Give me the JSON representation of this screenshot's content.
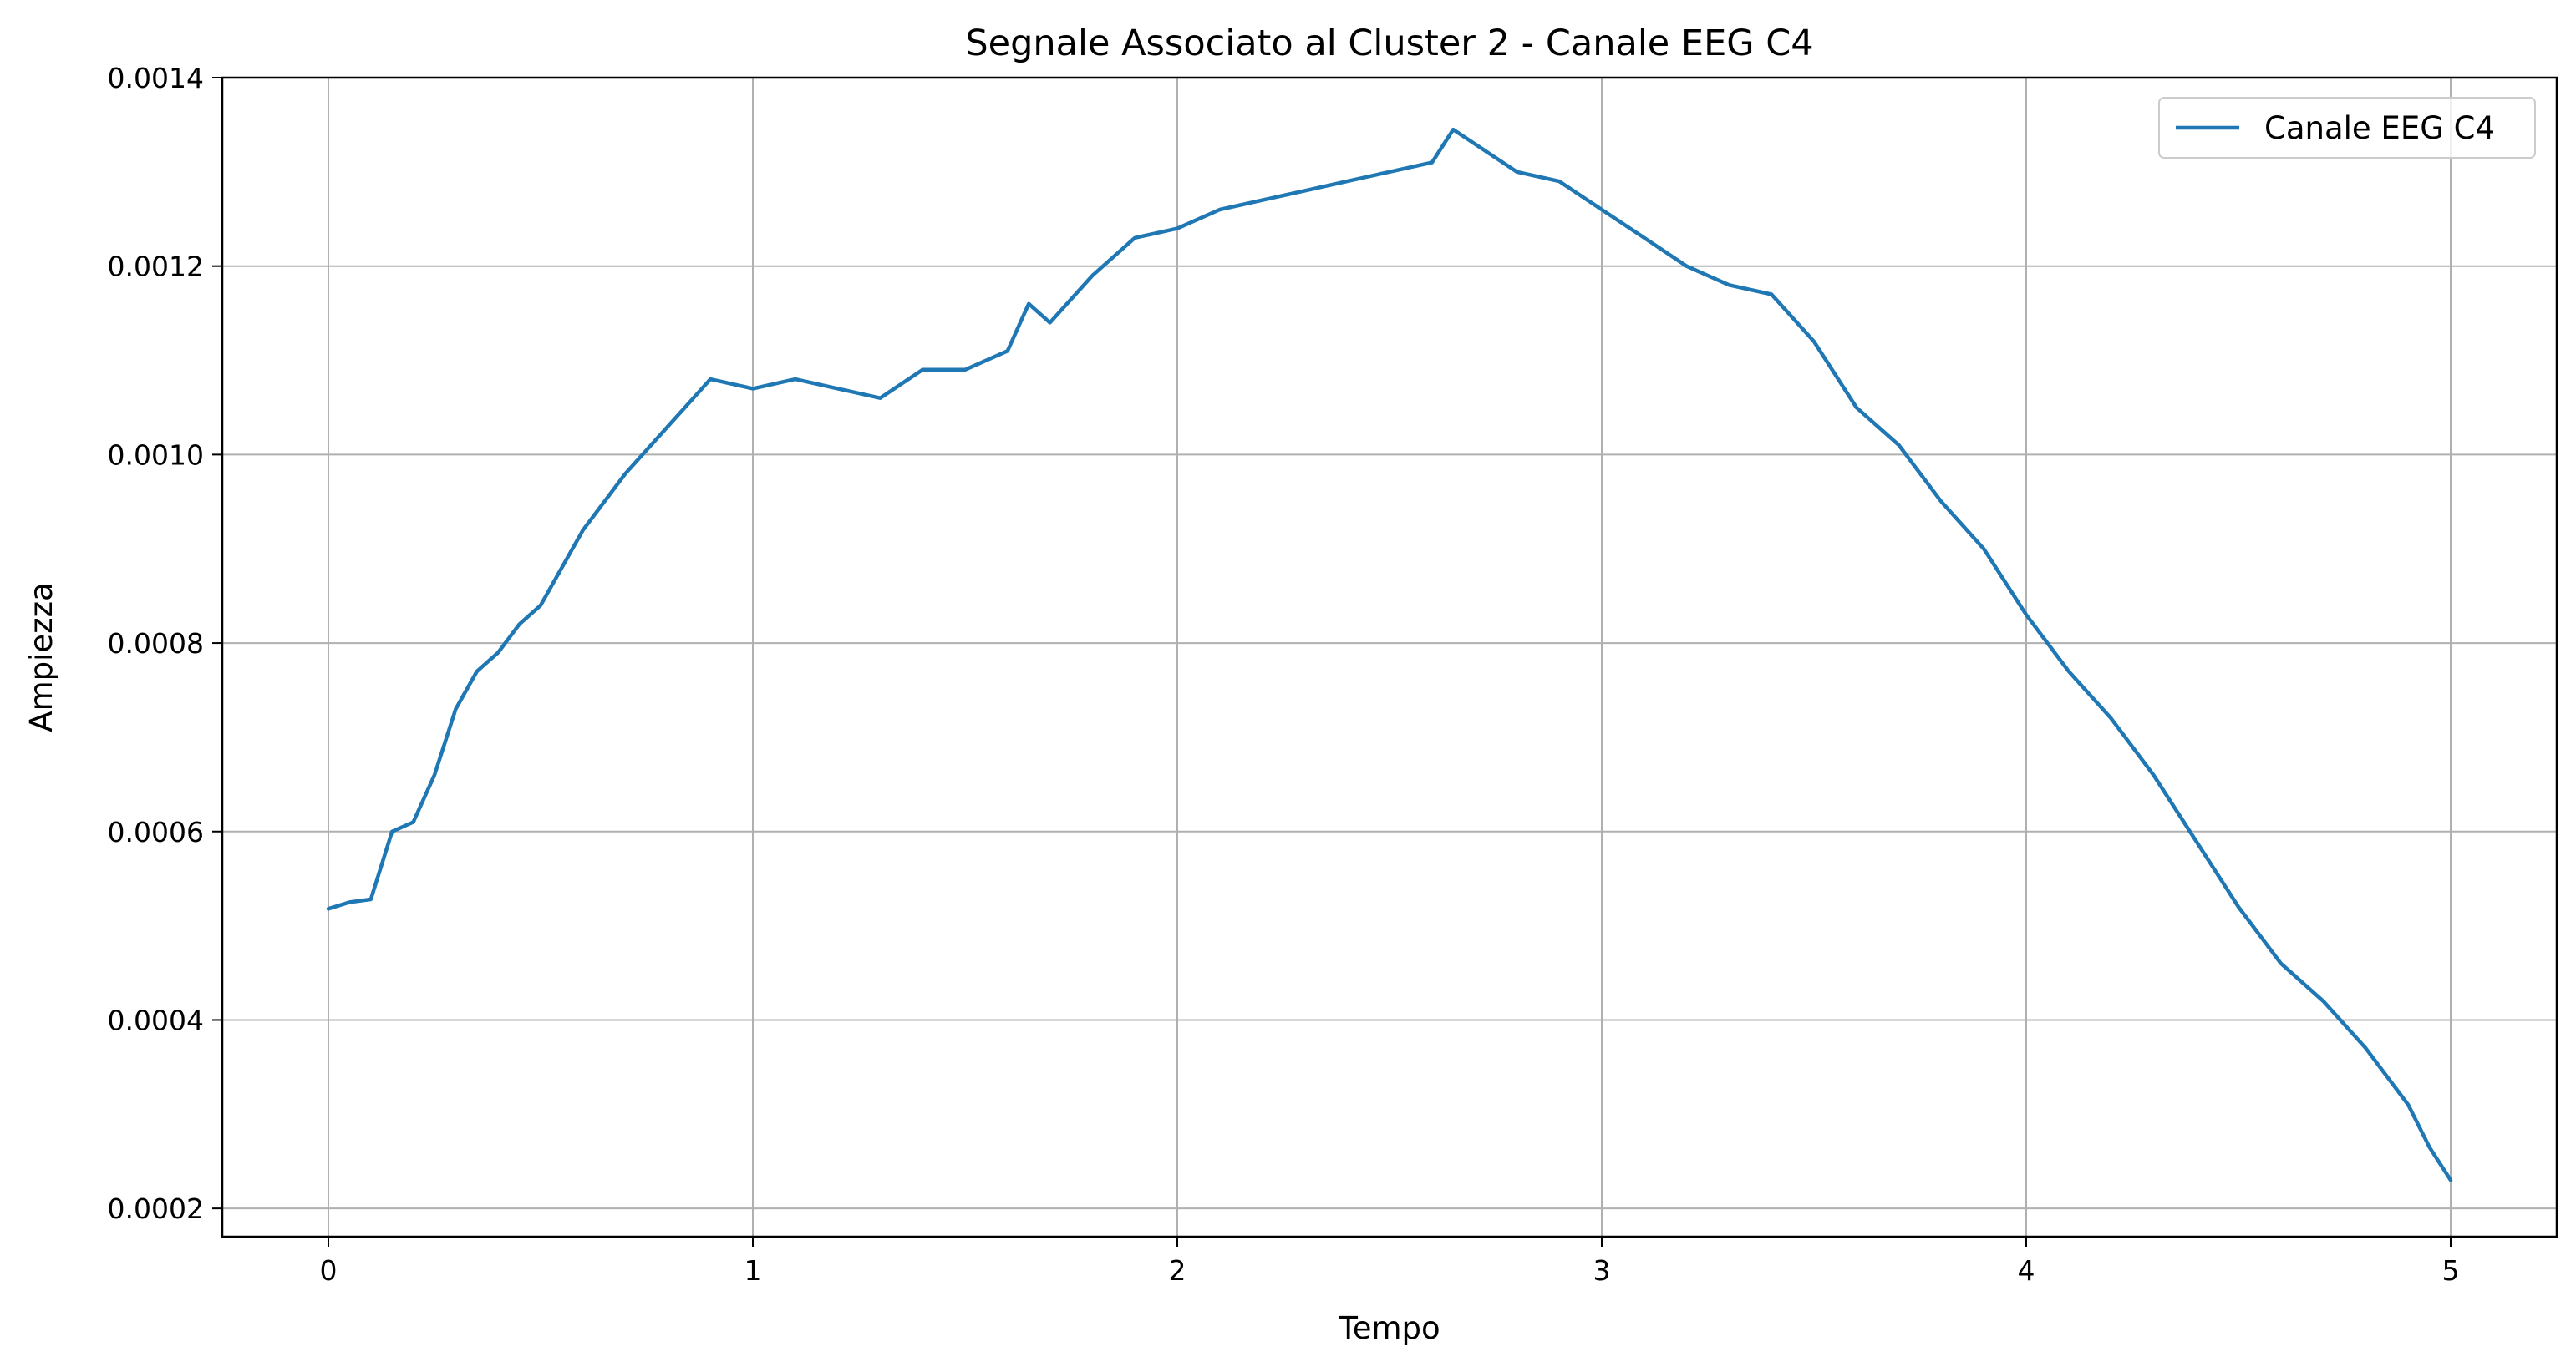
{
  "chart_data": {
    "type": "line",
    "title": "Segnale Associato al Cluster 2 - Canale EEG C4",
    "xlabel": "Tempo",
    "ylabel": "Ampiezza",
    "xlim": [
      -0.25,
      5.25
    ],
    "ylim": [
      0.00017,
      0.0014
    ],
    "xticks": [
      0,
      1,
      2,
      3,
      4,
      5
    ],
    "xtick_labels": [
      "0",
      "1",
      "2",
      "3",
      "4",
      "5"
    ],
    "yticks": [
      0.0002,
      0.0004,
      0.0006,
      0.0008,
      0.001,
      0.0012,
      0.0014
    ],
    "ytick_labels": [
      "0.0002",
      "0.0004",
      "0.0006",
      "0.0008",
      "0.0010",
      "0.0012",
      "0.0014"
    ],
    "grid": true,
    "legend_position": "top-right",
    "series": [
      {
        "name": "Canale EEG C4",
        "color": "#1f77b4",
        "x": [
          0,
          0.05,
          0.1,
          0.15,
          0.2,
          0.25,
          0.3,
          0.35,
          0.4,
          0.45,
          0.5,
          0.6,
          0.7,
          0.8,
          0.9,
          1.0,
          1.1,
          1.2,
          1.3,
          1.4,
          1.5,
          1.6,
          1.65,
          1.7,
          1.8,
          1.9,
          2.0,
          2.1,
          2.2,
          2.3,
          2.4,
          2.5,
          2.6,
          2.65,
          2.7,
          2.8,
          2.9,
          3.0,
          3.1,
          3.2,
          3.3,
          3.4,
          3.5,
          3.6,
          3.7,
          3.8,
          3.9,
          4.0,
          4.1,
          4.2,
          4.3,
          4.4,
          4.5,
          4.6,
          4.7,
          4.8,
          4.9,
          4.95,
          5.0
        ],
        "y": [
          0.000518,
          0.000525,
          0.000528,
          0.0006,
          0.00061,
          0.00066,
          0.00073,
          0.00077,
          0.00079,
          0.00082,
          0.00084,
          0.00092,
          0.00098,
          0.00103,
          0.00108,
          0.00107,
          0.00108,
          0.00107,
          0.00106,
          0.00109,
          0.00109,
          0.00111,
          0.00116,
          0.00114,
          0.00119,
          0.00123,
          0.00124,
          0.00126,
          0.00127,
          0.00128,
          0.00129,
          0.0013,
          0.00131,
          0.001345,
          0.00133,
          0.0013,
          0.00129,
          0.00126,
          0.00123,
          0.0012,
          0.00118,
          0.00117,
          0.00112,
          0.00105,
          0.00101,
          0.00095,
          0.0009,
          0.00083,
          0.00077,
          0.00072,
          0.00066,
          0.00059,
          0.00052,
          0.00046,
          0.00042,
          0.00037,
          0.00031,
          0.000265,
          0.00023
        ]
      }
    ]
  }
}
